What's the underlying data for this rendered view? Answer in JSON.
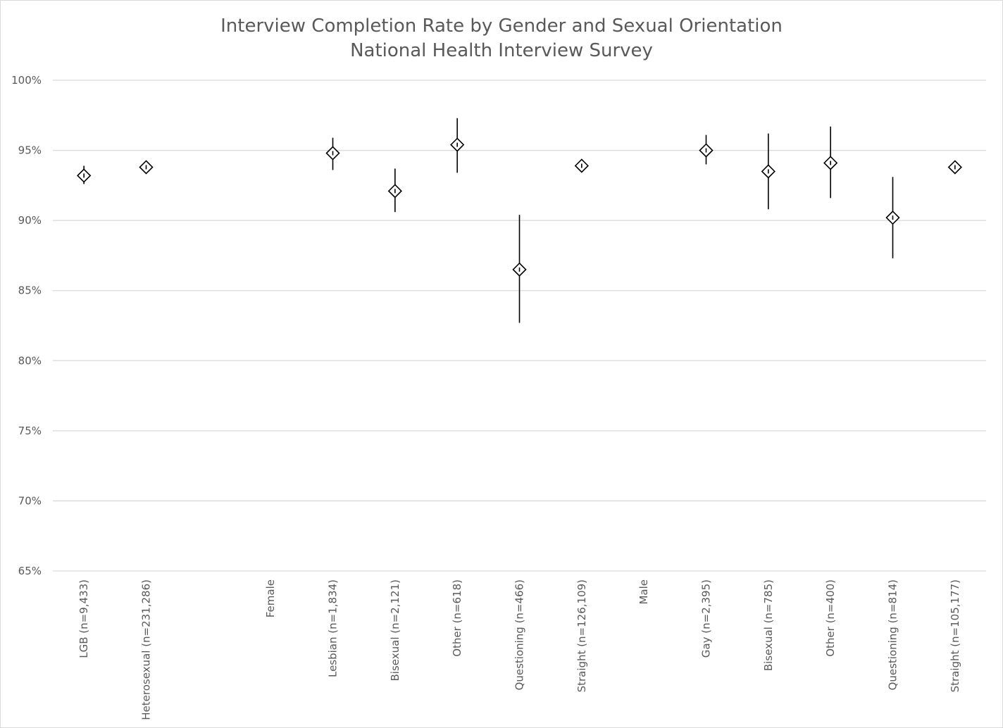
{
  "chart_data": {
    "type": "scatter",
    "title": "Interview Completion Rate by Gender and Sexual Orientation",
    "subtitle": "National Health Interview Survey",
    "ylim": [
      0.65,
      1.0
    ],
    "yticks": [
      {
        "value": 1.0,
        "label": "100%"
      },
      {
        "value": 0.95,
        "label": "95%"
      },
      {
        "value": 0.9,
        "label": "90%"
      },
      {
        "value": 0.85,
        "label": "85%"
      },
      {
        "value": 0.8,
        "label": "80%"
      },
      {
        "value": 0.75,
        "label": "75%"
      },
      {
        "value": 0.7,
        "label": "70%"
      },
      {
        "value": 0.65,
        "label": "65%"
      }
    ],
    "grid": true,
    "legend": "none",
    "marker": "diamond",
    "categories": [
      "LGB (n=9,433)",
      "Heterosexual (n=231,286)",
      "",
      "Female",
      "Lesbian (n=1,834)",
      "Bisexual (n=2,121)",
      "Other (n=618)",
      "Questioning (n=466)",
      "Straight (n=126,109)",
      "Male",
      "Gay (n=2,395)",
      "Bisexual (n=785)",
      "Other (n=400)",
      "Questioning (n=814)",
      "Straight (n=105,177)"
    ],
    "values": [
      0.932,
      0.938,
      null,
      null,
      0.948,
      0.921,
      0.954,
      0.865,
      0.939,
      null,
      0.95,
      0.935,
      0.941,
      0.902,
      0.938
    ],
    "error_low": [
      0.926,
      0.937,
      null,
      null,
      0.936,
      0.906,
      0.934,
      0.827,
      0.938,
      null,
      0.94,
      0.908,
      0.916,
      0.873,
      0.937
    ],
    "error_high": [
      0.939,
      0.939,
      null,
      null,
      0.959,
      0.937,
      0.973,
      0.904,
      0.94,
      null,
      0.961,
      0.962,
      0.967,
      0.931,
      0.939
    ]
  }
}
